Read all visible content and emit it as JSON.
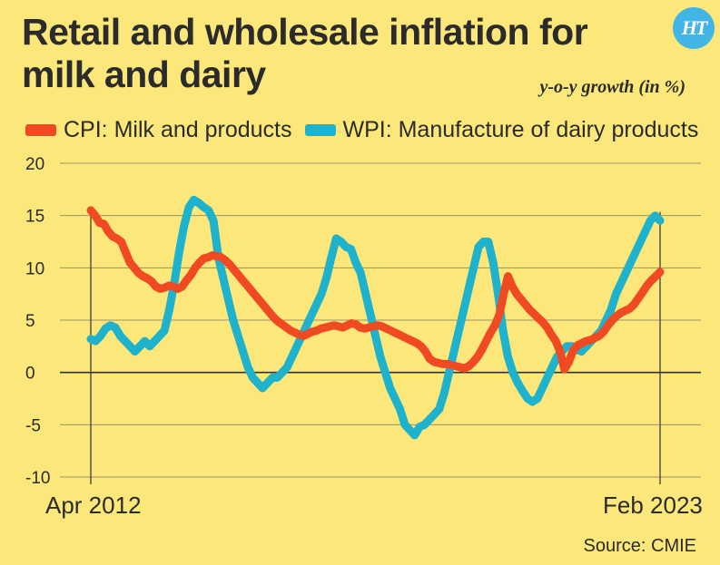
{
  "header": {
    "title": "Retail and wholesale inflation for milk and dairy",
    "unit": "y-o-y growth (in %)",
    "logo_text": "HT"
  },
  "footer": {
    "source": "Source: CMIE"
  },
  "colors": {
    "background": "#fbe77a",
    "cpi": "#f04a23",
    "wpi": "#1fb2cc",
    "logo": "#41b6e6"
  },
  "chart_data": {
    "type": "line",
    "x_start_label": "Apr 2012",
    "x_end_label": "Feb 2023",
    "ylim": [
      -10,
      20
    ],
    "yticks": [
      "-10",
      "-5",
      "0",
      "5",
      "10",
      "15",
      "20"
    ],
    "grid": true,
    "legend_position": "top",
    "series": [
      {
        "name": "CPI: Milk and products",
        "color": "#f04a23",
        "values": [
          15.5,
          15,
          14.3,
          14.2,
          13.5,
          13,
          12.8,
          12.5,
          11.5,
          10.5,
          10,
          9.5,
          9.2,
          9,
          8.7,
          8.2,
          8,
          8.1,
          8.3,
          8.2,
          8,
          8.2,
          8.8,
          9.3,
          10,
          10.5,
          10.9,
          11,
          11.2,
          11.1,
          11,
          10.7,
          10.3,
          9.8,
          9.3,
          8.8,
          8.3,
          7.8,
          7.3,
          6.8,
          6.3,
          5.8,
          5.3,
          4.9,
          4.6,
          4.3,
          4,
          3.8,
          3.6,
          3.5,
          3.7,
          3.9,
          4,
          4.2,
          4.3,
          4.4,
          4.5,
          4.4,
          4.3,
          4.5,
          4.7,
          4.6,
          4.3,
          4.2,
          4.3,
          4.4,
          4.5,
          4.4,
          4.2,
          4,
          3.8,
          3.6,
          3.4,
          3.2,
          3,
          2.8,
          2.5,
          2,
          1.3,
          1,
          0.9,
          0.8,
          0.8,
          0.7,
          0.6,
          0.5,
          0.4,
          0.6,
          1,
          1.5,
          2.2,
          3,
          3.8,
          4.5,
          5.5,
          7.5,
          9.2,
          8.2,
          7.5,
          7,
          6.5,
          6,
          5.6,
          5.2,
          4.8,
          4.3,
          3.6,
          3,
          2,
          0.3,
          1,
          2.1,
          2.6,
          2.8,
          3,
          3.1,
          3.3,
          3.5,
          3.9,
          4.5,
          5,
          5.4,
          5.7,
          5.9,
          6.1,
          6.5,
          7.1,
          7.7,
          8.3,
          8.8,
          9.2,
          9.6
        ]
      },
      {
        "name": "WPI: Manufacture of dairy products",
        "color": "#1fb2cc",
        "values": [
          3.2,
          3,
          3.5,
          4.2,
          4.5,
          4.3,
          3.5,
          3,
          2.5,
          2,
          2.5,
          3,
          2.5,
          3,
          3.5,
          4,
          6,
          8.5,
          11.5,
          14,
          15.8,
          16.5,
          16.2,
          15.8,
          15.5,
          14.5,
          11,
          9,
          7,
          5,
          3.5,
          2,
          0.5,
          -0.5,
          -1,
          -1.5,
          -1,
          -0.5,
          -0.5,
          0,
          0.5,
          1.5,
          2.5,
          3.5,
          4.5,
          5.5,
          6.5,
          7.5,
          9,
          11,
          12.8,
          12.5,
          12,
          11.8,
          10.5,
          9.5,
          7.5,
          5.5,
          3.5,
          1.5,
          0,
          -1.5,
          -2.5,
          -3.5,
          -5,
          -5.5,
          -6,
          -5.2,
          -5,
          -4.5,
          -4,
          -3.5,
          -2,
          0,
          2,
          4,
          6,
          8,
          10,
          12,
          12.5,
          12.5,
          10.5,
          7.5,
          4,
          1.5,
          0,
          -1,
          -1.8,
          -2.5,
          -2.8,
          -2.5,
          -1.5,
          -0.5,
          0.5,
          1.5,
          2,
          2.5,
          2.5,
          2.2,
          2,
          2.5,
          3,
          3.5,
          4,
          5,
          6,
          7.5,
          8.5,
          9.5,
          10.5,
          11.5,
          12.5,
          13.5,
          14.5,
          15,
          14.5
        ]
      }
    ]
  }
}
